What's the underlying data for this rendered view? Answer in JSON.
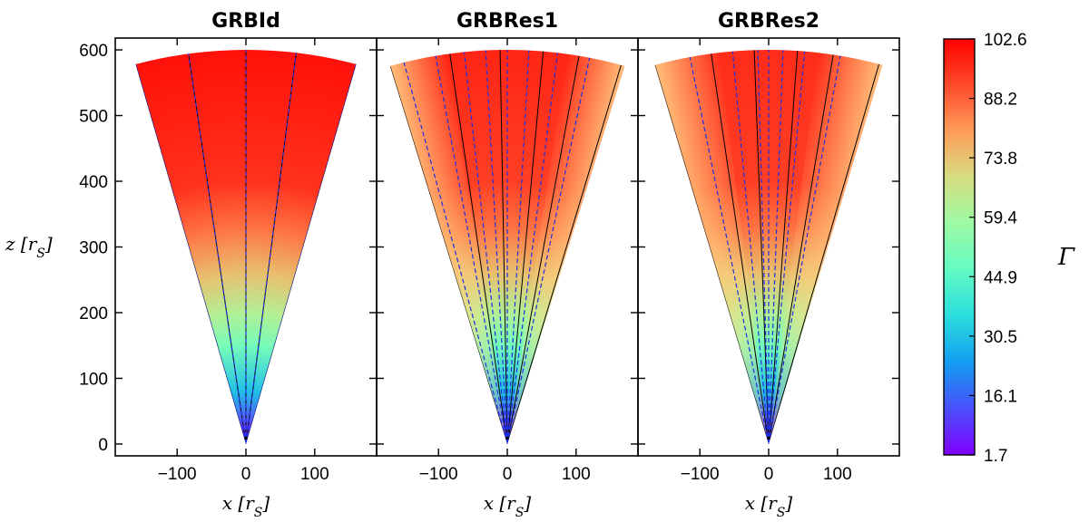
{
  "chart_data": {
    "type": "heatmap",
    "panels": [
      {
        "title": "GRBId",
        "half_opening_angle_deg": 15.5,
        "r_max": 600,
        "gamma_profile": {
          "r": [
            0,
            80,
            150,
            200,
            260,
            330,
            400,
            600
          ],
          "gamma": [
            1.7,
            30,
            50,
            62,
            74,
            86,
            95,
            100
          ]
        },
        "solid_line_angles_deg": [
          -15.5,
          -8,
          0,
          7,
          15.5
        ],
        "dashed_line_angles_deg": [
          -15.5,
          -8,
          0,
          7,
          15.5
        ]
      },
      {
        "title": "GRBRes1",
        "half_opening_angle_deg": 16.5,
        "r_max": 600,
        "gamma_profile": {
          "r": [
            0,
            80,
            150,
            200,
            260,
            330,
            400,
            600
          ],
          "gamma": [
            1.7,
            30,
            50,
            62,
            74,
            86,
            93,
            97
          ]
        },
        "edge_fade_deg": 8,
        "solid_line_angles_deg": [
          -16.5,
          -8,
          -1,
          5,
          10,
          16
        ],
        "dashed_line_angles_deg": [
          -14.5,
          -10,
          -6,
          -3,
          0,
          3,
          7,
          11.5
        ]
      },
      {
        "title": "GRBRes2",
        "half_opening_angle_deg": 16,
        "r_max": 600,
        "gamma_profile": {
          "r": [
            0,
            80,
            150,
            200,
            260,
            330,
            400,
            600
          ],
          "gamma": [
            1.7,
            30,
            50,
            62,
            74,
            86,
            93,
            96
          ]
        },
        "edge_fade_deg": 9,
        "solid_line_angles_deg": [
          -16,
          -8,
          -2,
          4,
          9,
          15.5
        ],
        "dashed_line_angles_deg": [
          -11,
          -5,
          -1.5,
          0,
          2,
          5,
          10
        ]
      }
    ],
    "x_axis": {
      "label": "x [r_S]",
      "ticks": [
        -100,
        0,
        100
      ],
      "tick_labels": [
        "−100",
        "0",
        "100"
      ],
      "range": [
        -190,
        190
      ]
    },
    "y_axis": {
      "label": "z [r_S]",
      "ticks": [
        0,
        100,
        200,
        300,
        400,
        500,
        600
      ],
      "tick_labels": [
        "0",
        "100",
        "200",
        "300",
        "400",
        "500",
        "600"
      ],
      "range": [
        -18,
        618
      ]
    },
    "colorbar": {
      "label": "Γ",
      "min": 1.7,
      "max": 102.6,
      "ticks": [
        "1.7",
        "16.1",
        "30.5",
        "44.9",
        "59.4",
        "73.8",
        "88.2",
        "102.6"
      ],
      "colors": [
        "#8000ff",
        "#4a4ffb",
        "#139df0",
        "#2adddd",
        "#62fbc4",
        "#9cfba4",
        "#d5dd80",
        "#ff9d5a",
        "#ff4a2a",
        "#ff0000"
      ]
    },
    "grid": false
  }
}
